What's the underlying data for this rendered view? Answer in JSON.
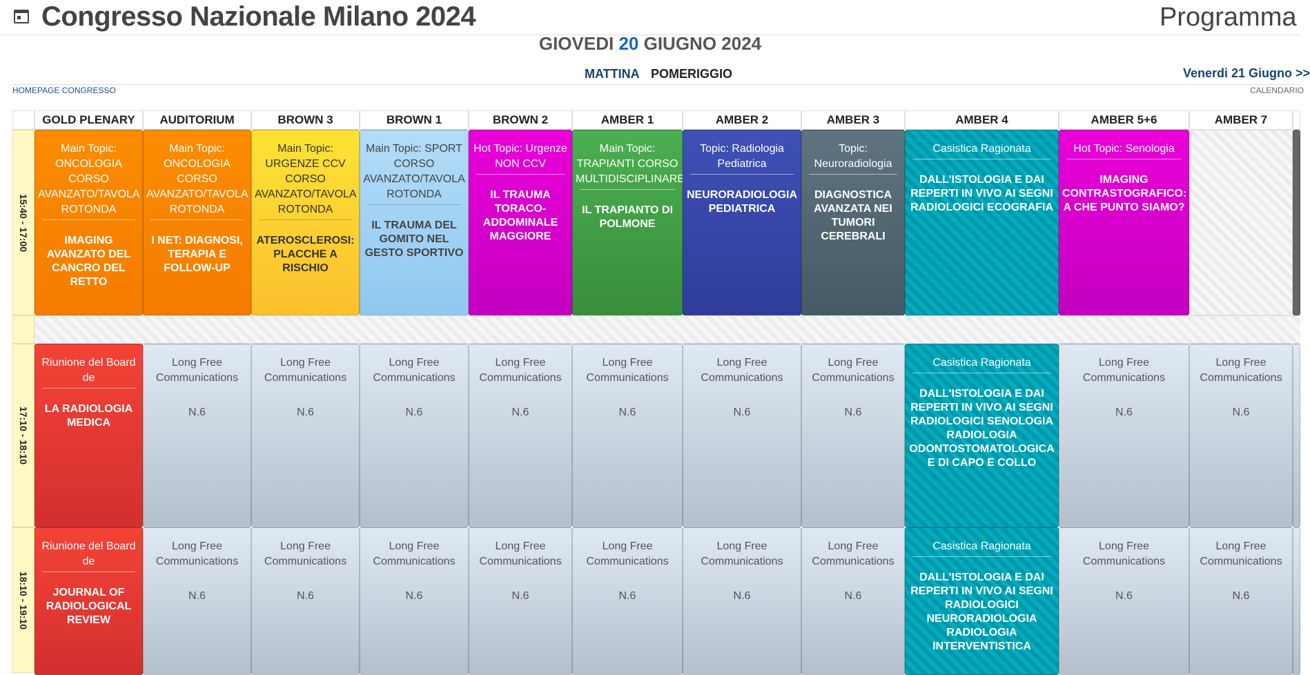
{
  "header": {
    "title": "Congresso Nazionale Milano 2024",
    "program_label": "Programma"
  },
  "day": {
    "weekday": "GIOVEDI",
    "num": "20",
    "month_year": "GIUGNO 2024"
  },
  "periods": {
    "morning": "MATTINA",
    "afternoon": "POMERIGGIO"
  },
  "next_day": "Venerdi 21 Giugno >>",
  "links": {
    "home": "HOMEPAGE CONGRESSO",
    "calendar": "CALENDARIO"
  },
  "rooms": [
    "GOLD PLENARY",
    "AUDITORIUM",
    "BROWN 3",
    "BROWN 1",
    "BROWN 2",
    "AMBER 1",
    "AMBER 2",
    "AMBER 3",
    "AMBER 4",
    "AMBER 5+6",
    "AMBER 7"
  ],
  "time_slots": [
    "15:40 - 17:00",
    "17:10 - 18:10",
    "18:10 - 19:10"
  ],
  "slot1": [
    {
      "head": "Main Topic: ONCOLOGIA CORSO AVANZATO/TAVOLA ROTONDA",
      "body": "IMAGING AVANZATO DEL CANCRO DEL RETTO"
    },
    {
      "head": "Main Topic: ONCOLOGIA CORSO AVANZATO/TAVOLA ROTONDA",
      "body": "I NET: DIAGNOSI, TERAPIA E FOLLOW-UP"
    },
    {
      "head": "Main Topic: URGENZE CCV CORSO AVANZATO/TAVOLA ROTONDA",
      "body": "ATEROSCLEROSI: PLACCHE A RISCHIO"
    },
    {
      "head": "Main Topic: SPORT CORSO AVANZATO/TAVOLA ROTONDA",
      "body": "IL TRAUMA DEL GOMITO NEL GESTO SPORTIVO"
    },
    {
      "head": "Hot Topic: Urgenze NON CCV",
      "body": "IL TRAUMA TORACO-ADDOMINALE MAGGIORE"
    },
    {
      "head": "Main Topic: TRAPIANTI CORSO MULTIDISCIPLINARE",
      "body": "IL TRAPIANTO DI POLMONE"
    },
    {
      "head": "Topic: Radiologia Pediatrica",
      "body": "NEURORADIOLOGIA PEDIATRICA"
    },
    {
      "head": "Topic: Neuroradiologia",
      "body": "DIAGNOSTICA AVANZATA NEI TUMORI CEREBRALI"
    },
    {
      "head": "Casistica Ragionata",
      "body": "DALL'ISTOLOGIA E DAI REPERTI IN VIVO AI SEGNI RADIOLOGICI ECOGRAFIA"
    },
    {
      "head": "Hot Topic: Senologia",
      "body": "IMAGING CONTRASTOGRAFICO: A CHE PUNTO SIAMO?"
    }
  ],
  "slot2": [
    {
      "head": "Riunione del Board de",
      "body": "LA RADIOLOGIA MEDICA"
    },
    {
      "head": "Long Free Communications",
      "body": "N.6"
    },
    {
      "head": "Long Free Communications",
      "body": "N.6"
    },
    {
      "head": "Long Free Communications",
      "body": "N.6"
    },
    {
      "head": "Long Free Communications",
      "body": "N.6"
    },
    {
      "head": "Long Free Communications",
      "body": "N.6"
    },
    {
      "head": "Long Free Communications",
      "body": "N.6"
    },
    {
      "head": "Long Free Communications",
      "body": "N.6"
    },
    {
      "head": "Casistica Ragionata",
      "body": "DALL'ISTOLOGIA E DAI REPERTI IN VIVO AI SEGNI RADIOLOGICI SENOLOGIA RADIOLOGIA ODONTOSTOMATOLOGICA E DI CAPO E COLLO"
    },
    {
      "head": "Long Free Communications",
      "body": "N.6"
    },
    {
      "head": "Long Free Communications",
      "body": "N.6"
    }
  ],
  "slot3": [
    {
      "head": "Riunione del Board de",
      "body": "JOURNAL OF RADIOLOGICAL REVIEW"
    },
    {
      "head": "Long Free Communications",
      "body": "N.6"
    },
    {
      "head": "Long Free Communications",
      "body": "N.6"
    },
    {
      "head": "Long Free Communications",
      "body": "N.6"
    },
    {
      "head": "Long Free Communications",
      "body": "N.6"
    },
    {
      "head": "Long Free Communications",
      "body": "N.6"
    },
    {
      "head": "Long Free Communications",
      "body": "N.6"
    },
    {
      "head": "Long Free Communications",
      "body": "N.6"
    },
    {
      "head": "Casistica Ragionata",
      "body": "DALL'ISTOLOGIA E DAI REPERTI IN VIVO AI SEGNI RADIOLOGICI NEURORADIOLOGIA RADIOLOGIA INTERVENTISTICA"
    },
    {
      "head": "Long Free Communications",
      "body": "N.6"
    },
    {
      "head": "Long Free Communications",
      "body": "N.6"
    }
  ],
  "colors": {
    "orange": "#f57c00",
    "yellow": "#fbc02d",
    "light_blue": "#90caf9",
    "magenta": "#d500c9",
    "green": "#43a047",
    "indigo": "#3949ab",
    "slate": "#546e7a",
    "teal": "#00acc1",
    "red": "#e53935"
  }
}
